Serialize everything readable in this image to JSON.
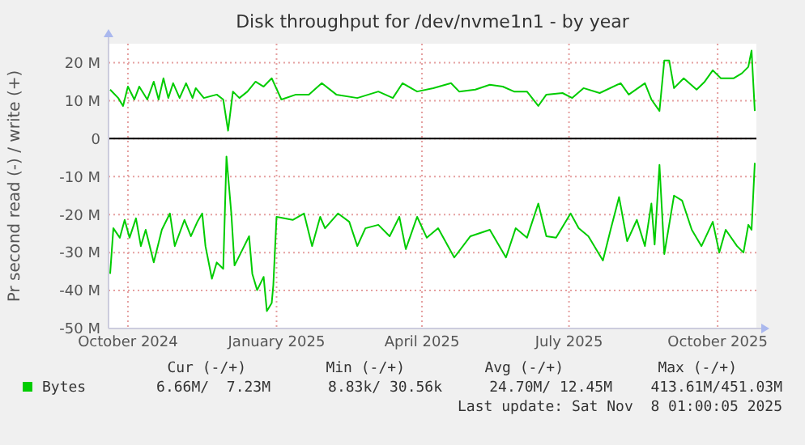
{
  "chart_data": {
    "type": "line",
    "title": "Disk throughput for /dev/nvme1n1 - by year",
    "ylabel": "Pr second read (-) / write (+)",
    "xlim": [
      "2024-09-19",
      "2025-10-25"
    ],
    "xticks": [
      {
        "value": "2024-10-01",
        "label": "October 2024"
      },
      {
        "value": "2025-01-01",
        "label": "January 2025"
      },
      {
        "value": "2025-04-01",
        "label": "April 2025"
      },
      {
        "value": "2025-07-01",
        "label": "July 2025"
      },
      {
        "value": "2025-10-01",
        "label": "October 2025"
      }
    ],
    "ylim": [
      -50,
      25
    ],
    "yticks": [
      {
        "value": -50,
        "label": "-50 M"
      },
      {
        "value": -40,
        "label": "-40 M"
      },
      {
        "value": -30,
        "label": "-30 M"
      },
      {
        "value": -20,
        "label": "-20 M"
      },
      {
        "value": -10,
        "label": "-10 M"
      },
      0,
      {
        "value": 10,
        "label": "10 M"
      },
      {
        "value": 20,
        "label": "20 M"
      }
    ],
    "grid": true,
    "legend": "bottom left",
    "marker": "none",
    "line_style": "solid",
    "ref_lines": [
      {
        "axis": "y",
        "value": 0,
        "color": "#000000"
      }
    ],
    "series": [
      {
        "name": "Bytes",
        "color": "#00cc00",
        "x": [
          "2024-09-20",
          "2024-09-22",
          "2024-09-26",
          "2024-09-29",
          "2024-10-02",
          "2024-10-06",
          "2024-10-09",
          "2024-10-12",
          "2024-10-17",
          "2024-10-22",
          "2024-10-27",
          "2024-10-30",
          "2024-11-05",
          "2024-11-09",
          "2024-11-13",
          "2024-11-16",
          "2024-11-18",
          "2024-11-22",
          "2024-11-25",
          "2024-11-29",
          "2024-12-01",
          "2024-12-04",
          "2024-12-06",
          "2024-12-10",
          "2024-12-15",
          "2024-12-17",
          "2024-12-20",
          "2024-12-24",
          "2024-12-26",
          "2024-12-29",
          "2024-12-30",
          "2025-01-01",
          "2025-01-11",
          "2025-01-18",
          "2025-01-23",
          "2025-01-28",
          "2025-01-31",
          "2025-02-08",
          "2025-02-15",
          "2025-02-20",
          "2025-02-25",
          "2025-03-05",
          "2025-03-12",
          "2025-03-18",
          "2025-03-22",
          "2025-03-29",
          "2025-04-04",
          "2025-04-11",
          "2025-04-21",
          "2025-05-01",
          "2025-05-13",
          "2025-05-23",
          "2025-05-29",
          "2025-06-05",
          "2025-06-12",
          "2025-06-17",
          "2025-06-23",
          "2025-07-02",
          "2025-07-07",
          "2025-07-13",
          "2025-07-22",
          "2025-07-27",
          "2025-08-01",
          "2025-08-06",
          "2025-08-12",
          "2025-08-17",
          "2025-08-21",
          "2025-08-23",
          "2025-08-26",
          "2025-08-29",
          "2025-09-04",
          "2025-09-09",
          "2025-09-15",
          "2025-09-21",
          "2025-09-28",
          "2025-10-02",
          "2025-10-06",
          "2025-10-13",
          "2025-10-17",
          "2025-10-20",
          "2025-10-22",
          "2025-10-24"
        ],
        "values": [
          -35.6,
          -23.6,
          -26.1,
          -21.4,
          -26.1,
          -21,
          -28.3,
          -24,
          -32.6,
          -24,
          -19.7,
          -28.3,
          -21.4,
          -25.7,
          -21.9,
          -19.7,
          -28.3,
          -36.9,
          -32.6,
          -34.3,
          -4.7,
          -19.7,
          -33.4,
          -30,
          -25.7,
          -35.6,
          -39.9,
          -36.4,
          -45.4,
          -43.3,
          -38.6,
          -20.6,
          -21.4,
          -19.7,
          -28.3,
          -20.6,
          -23.6,
          -19.7,
          -21.9,
          -28.3,
          -23.6,
          -22.7,
          -25.7,
          -20.6,
          -29.1,
          -20.6,
          -26.1,
          -23.6,
          -31.3,
          -25.7,
          -24,
          -31.3,
          -23.6,
          -26.1,
          -17.1,
          -25.7,
          -26.1,
          -19.7,
          -23.6,
          -25.7,
          -32.1,
          -23.6,
          -15.4,
          -27,
          -21.4,
          -28.3,
          -17.1,
          -27.9,
          -6.9,
          -30.4,
          -15,
          -16.3,
          -24,
          -28.3,
          -21.9,
          -30,
          -24,
          -28.3,
          -30,
          -22.7,
          -24,
          -6.4
        ]
      },
      {
        "color": "#00cc00",
        "x": [
          "2024-09-20",
          "2024-09-25",
          "2024-09-28",
          "2024-10-01",
          "2024-10-05",
          "2024-10-08",
          "2024-10-13",
          "2024-10-17",
          "2024-10-20",
          "2024-10-23",
          "2024-10-26",
          "2024-10-29",
          "2024-11-02",
          "2024-11-06",
          "2024-11-10",
          "2024-11-12",
          "2024-11-17",
          "2024-11-25",
          "2024-11-29",
          "2024-12-02",
          "2024-12-05",
          "2024-12-09",
          "2024-12-14",
          "2024-12-19",
          "2024-12-24",
          "2024-12-29",
          "2025-01-04",
          "2025-01-13",
          "2025-01-21",
          "2025-01-29",
          "2025-02-07",
          "2025-02-20",
          "2025-03-05",
          "2025-03-14",
          "2025-03-20",
          "2025-03-29",
          "2025-04-08",
          "2025-04-19",
          "2025-04-24",
          "2025-05-04",
          "2025-05-13",
          "2025-05-21",
          "2025-05-28",
          "2025-06-05",
          "2025-06-12",
          "2025-06-17",
          "2025-06-27",
          "2025-07-03",
          "2025-07-10",
          "2025-07-20",
          "2025-08-02",
          "2025-08-07",
          "2025-08-17",
          "2025-08-21",
          "2025-08-26",
          "2025-08-29",
          "2025-09-01",
          "2025-09-04",
          "2025-09-10",
          "2025-09-18",
          "2025-09-23",
          "2025-09-28",
          "2025-10-03",
          "2025-10-11",
          "2025-10-16",
          "2025-10-20",
          "2025-10-22",
          "2025-10-24"
        ],
        "values": [
          12.9,
          10.7,
          8.6,
          13.7,
          10.3,
          13.7,
          10.3,
          15,
          10.3,
          15.9,
          10.7,
          14.6,
          10.7,
          14.6,
          10.7,
          13.3,
          10.7,
          11.6,
          10.3,
          2.1,
          12.4,
          10.7,
          12.4,
          15,
          13.7,
          15.9,
          10.3,
          11.6,
          11.6,
          14.6,
          11.6,
          10.7,
          12.4,
          10.7,
          14.6,
          12.4,
          13.3,
          14.6,
          12.4,
          12.9,
          14.2,
          13.7,
          12.4,
          12.4,
          8.6,
          11.6,
          12,
          10.7,
          13.3,
          12,
          14.6,
          11.6,
          14.6,
          10.3,
          7.3,
          20.6,
          20.6,
          13.3,
          15.9,
          12.9,
          15,
          18,
          15.9,
          15.9,
          17.2,
          18.9,
          23.2,
          7.3
        ]
      }
    ],
    "annotations": [
      "Cur (-/+)",
      "Min (-/+)",
      "Avg (-/+)",
      "Max (-/+)",
      "6.66M/  7.23M",
      "8.83k/ 30.56k",
      "24.70M/ 12.45M",
      "413.61M/451.03M",
      "Last update: Sat Nov  8 01:00:05 2025"
    ]
  }
}
